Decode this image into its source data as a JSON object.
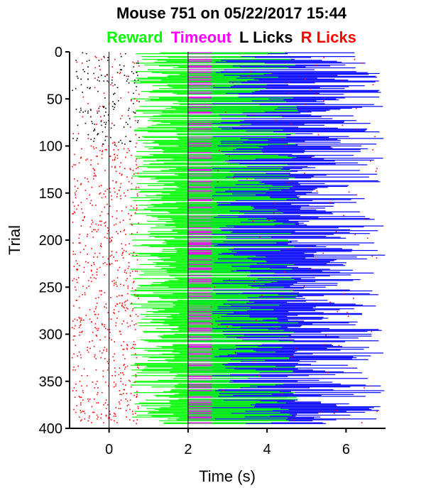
{
  "chart_data": {
    "type": "scatter",
    "title": "Mouse 751 on 05/22/2017 15:44",
    "legend": [
      {
        "label": "Reward",
        "color": "#00ff00"
      },
      {
        "label": "Timeout",
        "color": "#ff00ff"
      },
      {
        "label": "L Licks",
        "color": "#000000"
      },
      {
        "label": "R Licks",
        "color": "#ff0000"
      }
    ],
    "series_colors": {
      "reward": "#00ff00",
      "timeout": "#ff00ff",
      "l_licks": "#000000",
      "r_licks": "#ff0000",
      "iti": "#0000ff",
      "overlap": "#999999"
    },
    "xlabel": "Time (s)",
    "ylabel": "Trial",
    "xlim": [
      -1,
      7
    ],
    "ylim": [
      0,
      400
    ],
    "y_reversed": true,
    "xticks": [
      "0",
      "2",
      "4",
      "6"
    ],
    "xtick_values": [
      0,
      2,
      4,
      6
    ],
    "yticks": [
      "0",
      "50",
      "100",
      "150",
      "200",
      "250",
      "300",
      "350",
      "400"
    ],
    "ytick_values": [
      0,
      50,
      100,
      150,
      200,
      250,
      300,
      350,
      400
    ],
    "reference_lines_x": [
      0,
      2
    ],
    "n_trials": 395,
    "timeout_window": [
      2,
      2.6
    ],
    "reward_start_range": [
      0.5,
      1.8
    ],
    "iti_end_range": [
      4.5,
      7
    ]
  }
}
